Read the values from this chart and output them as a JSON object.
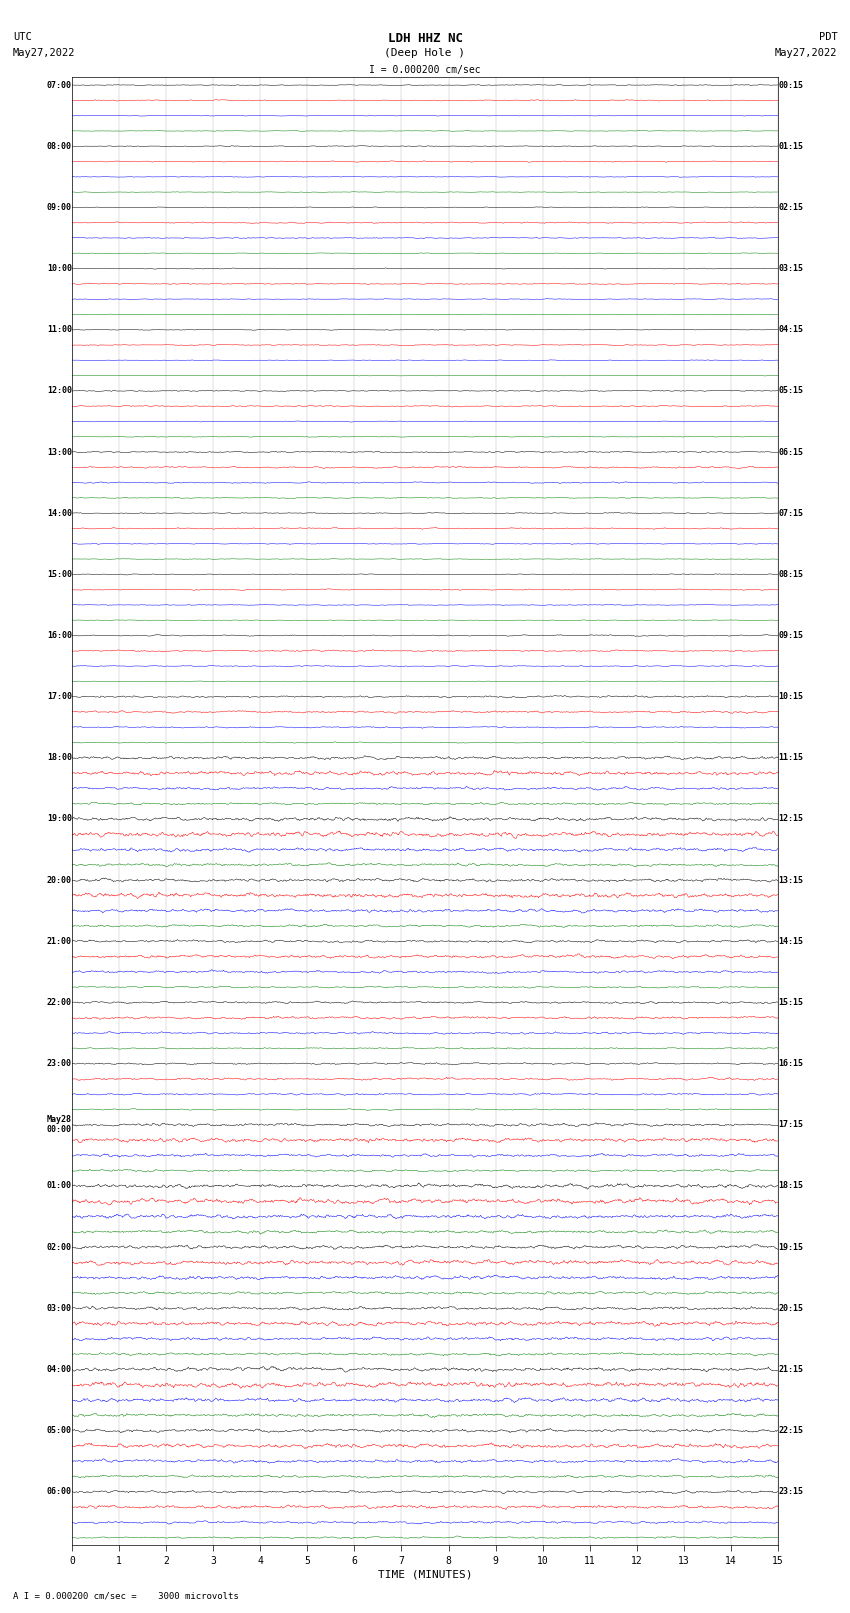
{
  "title_line1": "LDH HHZ NC",
  "title_line2": "(Deep Hole )",
  "scale_label": "I = 0.000200 cm/sec",
  "bottom_label": "A I = 0.000200 cm/sec =    3000 microvolts",
  "xlabel": "TIME (MINUTES)",
  "figsize": [
    8.5,
    16.13
  ],
  "dpi": 100,
  "background_color": "white",
  "trace_colors": [
    "black",
    "red",
    "blue",
    "green"
  ],
  "num_groups": 24,
  "traces_per_group": 4,
  "minutes": 15,
  "left_times": [
    "07:00",
    "08:00",
    "09:00",
    "10:00",
    "11:00",
    "12:00",
    "13:00",
    "14:00",
    "15:00",
    "16:00",
    "17:00",
    "18:00",
    "19:00",
    "20:00",
    "21:00",
    "22:00",
    "23:00",
    "May28\n00:00",
    "01:00",
    "02:00",
    "03:00",
    "04:00",
    "05:00",
    "06:00"
  ],
  "right_times": [
    "00:15",
    "01:15",
    "02:15",
    "03:15",
    "04:15",
    "05:15",
    "06:15",
    "07:15",
    "08:15",
    "09:15",
    "10:15",
    "11:15",
    "12:15",
    "13:15",
    "14:15",
    "15:15",
    "16:15",
    "17:15",
    "18:15",
    "19:15",
    "20:15",
    "21:15",
    "22:15",
    "23:15"
  ],
  "noise_scales": [
    0.012,
    0.015,
    0.01,
    0.008,
    0.012,
    0.015,
    0.01,
    0.008,
    0.012,
    0.018,
    0.012,
    0.009,
    0.012,
    0.015,
    0.01,
    0.008,
    0.012,
    0.015,
    0.01,
    0.008,
    0.015,
    0.018,
    0.012,
    0.009,
    0.02,
    0.025,
    0.018,
    0.012,
    0.015,
    0.018,
    0.012,
    0.009,
    0.012,
    0.015,
    0.01,
    0.008,
    0.018,
    0.022,
    0.015,
    0.01,
    0.025,
    0.03,
    0.02,
    0.015,
    0.04,
    0.055,
    0.04,
    0.03,
    0.05,
    0.07,
    0.05,
    0.04,
    0.045,
    0.06,
    0.045,
    0.035,
    0.035,
    0.045,
    0.035,
    0.025,
    0.03,
    0.038,
    0.028,
    0.02,
    0.025,
    0.032,
    0.025,
    0.018,
    0.04,
    0.055,
    0.04,
    0.03,
    0.055,
    0.075,
    0.055,
    0.042,
    0.05,
    0.065,
    0.05,
    0.038,
    0.045,
    0.06,
    0.045,
    0.035,
    0.055,
    0.075,
    0.055,
    0.042,
    0.045,
    0.06,
    0.045,
    0.035,
    0.035,
    0.045,
    0.035,
    0.025
  ],
  "ar_coeff": 0.85,
  "lw": 0.35
}
